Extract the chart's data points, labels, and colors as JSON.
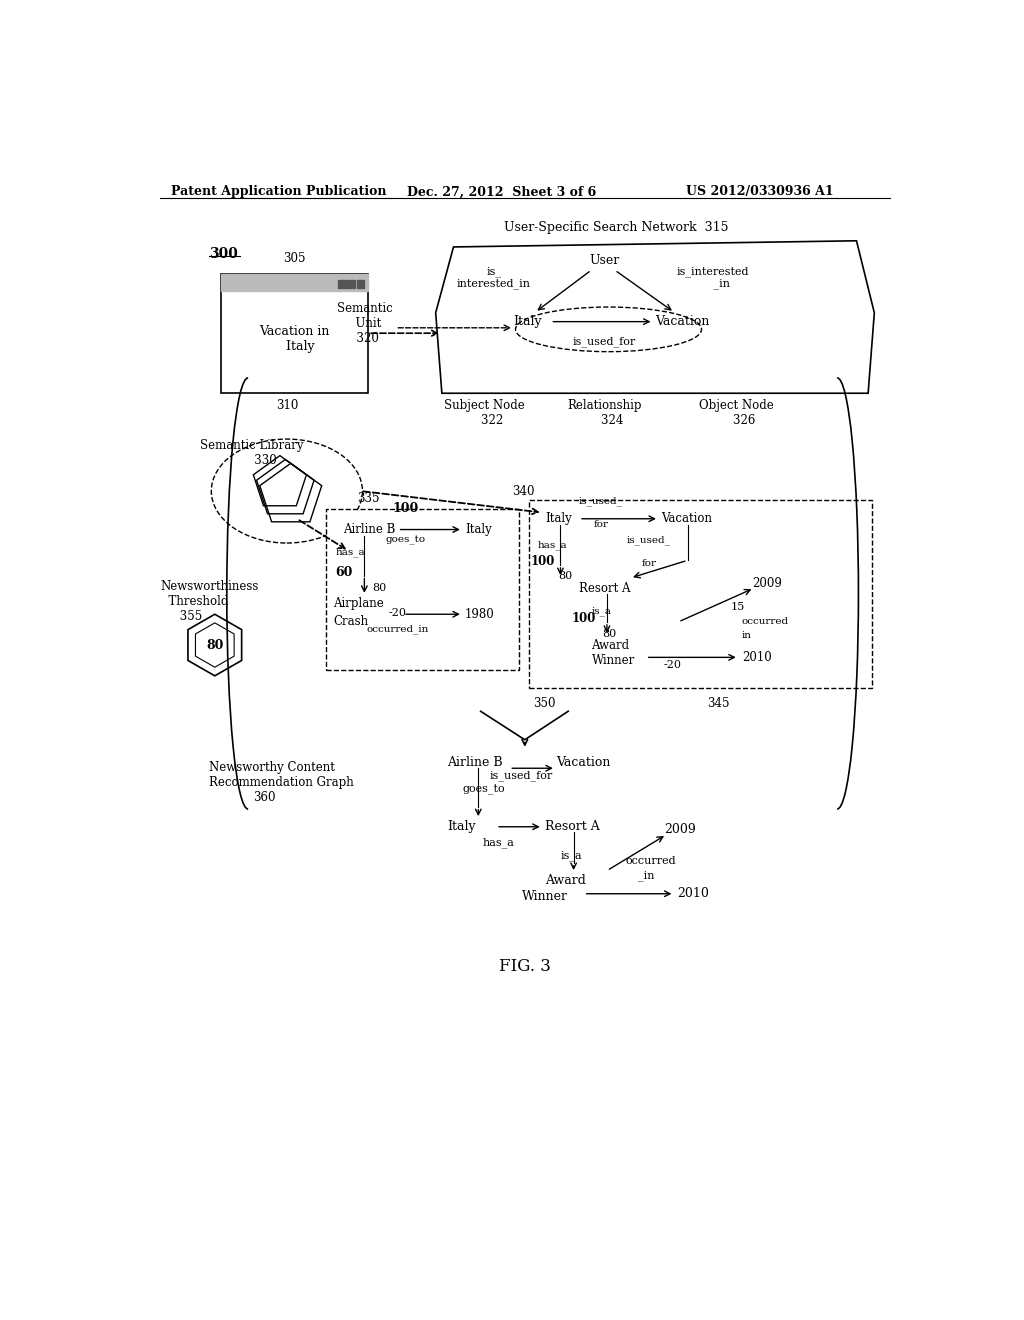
{
  "header_left": "Patent Application Publication",
  "header_mid": "Dec. 27, 2012  Sheet 3 of 6",
  "header_right": "US 2012/0330936 A1",
  "fig_label": "FIG. 3",
  "diagram_label": "300",
  "background_color": "#ffffff",
  "text_color": "#000000"
}
